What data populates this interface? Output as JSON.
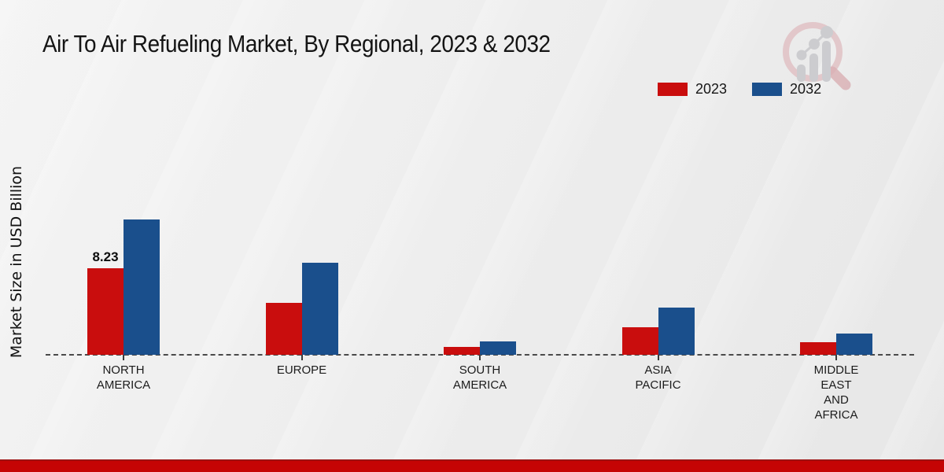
{
  "title": "Air To Air Refueling Market, By Regional, 2023 & 2032",
  "y_axis_label": "Market Size in USD Billion",
  "legend": {
    "items": [
      {
        "label": "2023",
        "color": "#c90d0d"
      },
      {
        "label": "2032",
        "color": "#1a4f8c"
      }
    ]
  },
  "chart_data": {
    "type": "bar",
    "title": "Air To Air Refueling Market, By Regional, 2023 & 2032",
    "ylabel": "Market Size in USD Billion",
    "categories": [
      "NORTH AMERICA",
      "EUROPE",
      "SOUTH AMERICA",
      "ASIA PACIFIC",
      "MIDDLE EAST AND AFRICA"
    ],
    "category_label_lines": [
      "NORTH\nAMERICA",
      "EUROPE",
      "SOUTH\nAMERICA",
      "ASIA\nPACIFIC",
      "MIDDLE\nEAST\nAND\nAFRICA"
    ],
    "series": [
      {
        "name": "2023",
        "color": "#c90d0d",
        "values": [
          8.23,
          4.94,
          0.75,
          2.62,
          1.2
        ],
        "data_labels": [
          "8.23",
          "",
          "",
          "",
          ""
        ]
      },
      {
        "name": "2032",
        "color": "#1a4f8c",
        "values": [
          12.87,
          8.75,
          1.27,
          4.49,
          2.02
        ],
        "data_labels": [
          "",
          "",
          "",
          "",
          ""
        ]
      }
    ],
    "ylim": [
      0,
      14
    ],
    "grid": false,
    "axis_line_style": "dashed",
    "legend_position": "top-right"
  },
  "watermark": {
    "name": "market-research-magnifier-logo"
  },
  "footer": {
    "accent_color": "#c50404"
  }
}
